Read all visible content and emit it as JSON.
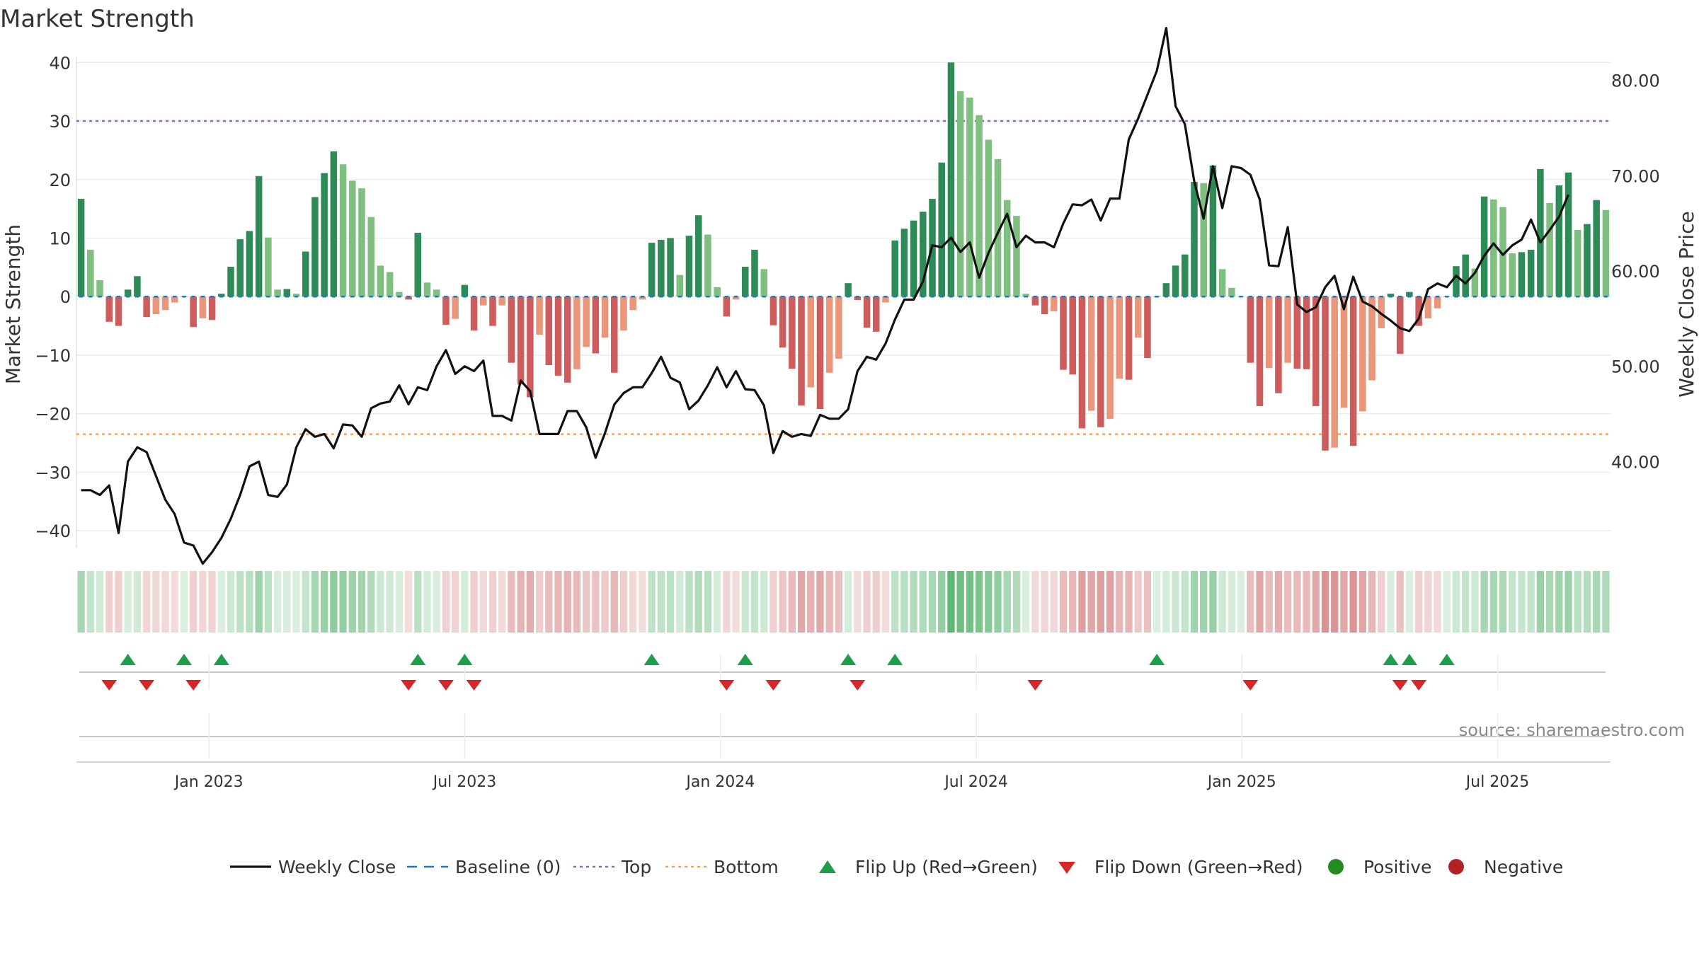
{
  "chart_data": {
    "type": "bar",
    "title": "Market Strength",
    "ylabel": "Market Strength",
    "y2label": "Weekly Close Price",
    "ylim": [
      -43,
      41
    ],
    "y2lim": [
      30.9,
      82.5
    ],
    "yticks": [
      40,
      30,
      20,
      10,
      0,
      -10,
      -20,
      -30,
      -40
    ],
    "ytick_labels": [
      "40",
      "30",
      "20",
      "10",
      "0",
      "−10",
      "−20",
      "−30",
      "−40"
    ],
    "y2ticks": [
      80,
      70,
      60,
      50,
      40
    ],
    "y2tick_labels": [
      "80.00",
      "70.00",
      "60.00",
      "50.00",
      "40.00"
    ],
    "start_date": "2022-10-03",
    "end_date": "2025-09-22",
    "x_ticks": [
      {
        "label": "Jan 2023",
        "date": "2023-01-02"
      },
      {
        "label": "Jul 2023",
        "date": "2023-07-03"
      },
      {
        "label": "Jan 2024",
        "date": "2024-01-01"
      },
      {
        "label": "Jul 2024",
        "date": "2024-07-01"
      },
      {
        "label": "Jan 2025",
        "date": "2025-01-06"
      },
      {
        "label": "Jul 2025",
        "date": "2025-07-07"
      }
    ],
    "reference_lines": {
      "baseline": 0,
      "top": 30,
      "bottom": -23.5
    },
    "strength": [
      16.7,
      8,
      2.8,
      -4.3,
      -5,
      1.2,
      3.5,
      -3.5,
      -3,
      -2.3,
      -1,
      0,
      -5.2,
      -3.7,
      -4,
      0.5,
      5.1,
      9.8,
      11.2,
      20.6,
      10.1,
      1.2,
      1.3,
      0.5,
      7.7,
      17,
      21.1,
      24.8,
      22.6,
      19.8,
      18.5,
      13.6,
      5.3,
      4.2,
      0.8,
      -0.5,
      10.9,
      2.4,
      1.2,
      -4.8,
      -3.8,
      2,
      -5.8,
      -1.5,
      -5,
      -1.5,
      -11.3,
      -15,
      -17.2,
      -6.5,
      -11.7,
      -13.5,
      -14.7,
      -12.4,
      -8.6,
      -9.7,
      -7,
      -13,
      -5.8,
      -2.3,
      -0.5,
      9.2,
      9.7,
      10,
      3.7,
      10.4,
      13.9,
      10.6,
      1.6,
      -3.4,
      -0.5,
      5.1,
      8,
      4.7,
      -4.9,
      -8.7,
      -12.3,
      -18.6,
      -15.5,
      -19.2,
      -13,
      -10.6,
      2.3,
      -0.6,
      -5.3,
      -6,
      -1,
      9.6,
      11.6,
      13,
      14.5,
      16.7,
      22.9,
      40,
      35.1,
      34,
      31,
      26.8,
      23.5,
      16.5,
      13.8,
      0.5,
      -1.5,
      -3,
      -2.5,
      -12.5,
      -13.3,
      -22.5,
      -19.5,
      -22.3,
      -20.9,
      -14,
      -14.2,
      -7,
      -10.5,
      0,
      2.3,
      5.3,
      7.2,
      19.6,
      19.4,
      22.4,
      4.7,
      1.5,
      0,
      -11.3,
      -18.7,
      -12.2,
      -16.5,
      -11.3,
      -12.3,
      -12.4,
      -18.7,
      -26.3,
      -25.8,
      -19,
      -25.5,
      -19.6,
      -14.3,
      -5.4,
      0.5,
      -9.8,
      0.8,
      -5,
      -3.7,
      -2,
      0,
      5.2,
      7.2,
      4.8,
      17.1,
      16.6,
      15.3,
      7.4,
      7.6,
      8,
      21.8,
      16,
      19,
      21.2,
      11.4,
      12.4,
      16.5,
      14.8
    ],
    "close": [
      37,
      37,
      36.5,
      37.5,
      32.5,
      40,
      41.5,
      41,
      38.5,
      36,
      34.5,
      31.5,
      31.2,
      29.3,
      30.5,
      32,
      34,
      36.5,
      39.5,
      40,
      36.5,
      36.3,
      37.6,
      41.5,
      43.4,
      42.6,
      42.9,
      41.4,
      43.9,
      43.8,
      42.6,
      45.6,
      46.1,
      46.3,
      48,
      46,
      47.8,
      47.5,
      50,
      51.7,
      49.2,
      50,
      49.5,
      50.6,
      44.8,
      44.8,
      44.3,
      48.5,
      47.4,
      42.9,
      42.9,
      42.9,
      45.3,
      45.3,
      43.6,
      40.4,
      43,
      46,
      47.2,
      47.8,
      47.8,
      49.3,
      51,
      48.8,
      48.3,
      45.5,
      46.4,
      48,
      49.9,
      47.8,
      49.5,
      47.6,
      47.5,
      45.9,
      40.9,
      43.2,
      42.6,
      42.9,
      42.7,
      44.9,
      44.5,
      44.5,
      45.5,
      49.5,
      51,
      50.7,
      52.4,
      54.9,
      57,
      57,
      58.9,
      62.7,
      62.5,
      63.5,
      62,
      63,
      59.3,
      61.9,
      64,
      66,
      62.5,
      63.7,
      63,
      63,
      62.5,
      65,
      67,
      66.9,
      67.5,
      65.3,
      67.6,
      67.6,
      73.8,
      76,
      78.5,
      81,
      85.5,
      77.3,
      75.4,
      69.4,
      65.5,
      71,
      66.6,
      71,
      70.8,
      70.1,
      67.5,
      60.6,
      60.5,
      64.6,
      56.5,
      55.7,
      56.2,
      58.3,
      59.5,
      56,
      59.4,
      56.8,
      56.3,
      55.5,
      54.8,
      54,
      53.7,
      55,
      58.1,
      58.7,
      58.3,
      59.5,
      58.7,
      59.8,
      61.6,
      62.9,
      61.7,
      62.7,
      63.3,
      65.4,
      63,
      64.3,
      65.7,
      68
    ]
  },
  "flips": {
    "up_labels": [
      "Flip Up (Red→Green)"
    ],
    "down_labels": [
      "Flip Down (Green→Red)"
    ]
  },
  "source_text": "source: sharemaestro.com",
  "legend": [
    {
      "key": "weekly-close",
      "label": "Weekly Close",
      "color": "#111111"
    },
    {
      "key": "baseline",
      "label": "Baseline (0)",
      "color": "#1f77b4"
    },
    {
      "key": "top",
      "label": "Top",
      "color": "#9467bd"
    },
    {
      "key": "bottom",
      "label": "Bottom",
      "color": "#f4a460"
    },
    {
      "key": "flip-up",
      "label": "Flip Up (Red→Green)",
      "color": "#1e9e4a"
    },
    {
      "key": "flip-down",
      "label": "Flip Down (Green→Red)",
      "color": "#d62728"
    },
    {
      "key": "positive",
      "label": "Positive",
      "color": "#228b22"
    },
    {
      "key": "negative",
      "label": "Negative",
      "color": "#b22222"
    }
  ],
  "colors": {
    "pos_strong": "#2e8b57",
    "pos_weak": "#7fbf7f",
    "neg_strong": "#cd5c5c",
    "neg_weak": "#e9967a",
    "strip_pos": "#4caf63",
    "strip_neg": "#c85a5a"
  }
}
